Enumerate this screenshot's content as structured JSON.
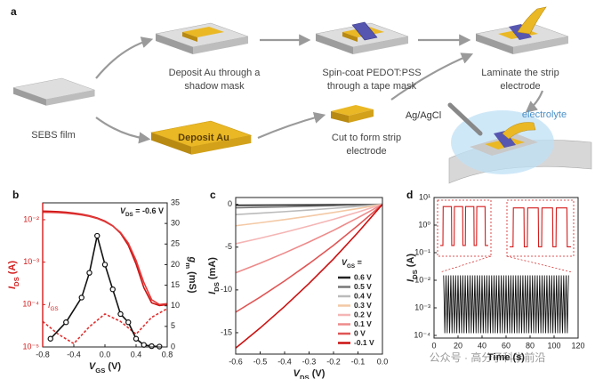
{
  "schematic": {
    "label": "a",
    "sebs": "SEBS film",
    "mask": [
      "Deposit Au through a",
      "shadow mask"
    ],
    "pedot": [
      "Spin-coat PEDOT:PSS",
      "through a tape mask"
    ],
    "laminate": [
      "Laminate the strip",
      "electrode"
    ],
    "deposit": "Deposit Au",
    "cut": [
      "Cut to form strip",
      "electrode"
    ],
    "reference": "Ag/AgCl",
    "electrolyte": "electrolyte"
  },
  "watermark": "公众号 · 高分子科学前沿",
  "chart_data": [
    {
      "type": "line",
      "label": "b",
      "xlabel": [
        "V",
        "GS",
        " (V)"
      ],
      "ylabel": [
        "I",
        "DS",
        " (A)"
      ],
      "y2label": [
        "g",
        "m",
        " (mS)"
      ],
      "annotation": [
        "V",
        "DS",
        " = -0.6 V"
      ],
      "series_label": [
        "I",
        "GS"
      ],
      "xlim": [
        -0.8,
        0.8
      ],
      "xticks": [
        -0.8,
        -0.4,
        {
          "value": 0,
          "label": "0.0"
        },
        0.4,
        0.8
      ],
      "ylim": [
        1e-05,
        0.025
      ],
      "yscale": "log",
      "ycolor": "#d41c1c",
      "yticks": [
        {
          "value": 1e-05,
          "label": "10⁻⁵"
        },
        {
          "value": 0.0001,
          "label": "10⁻⁴"
        },
        {
          "value": 0.001,
          "label": "10⁻³"
        },
        {
          "value": 0.01,
          "label": "10⁻²"
        }
      ],
      "y2lim": [
        0,
        35
      ],
      "y2ticks": [
        0,
        5,
        10,
        15,
        20,
        25,
        30,
        35
      ],
      "series": [
        {
          "color": "#cc1111",
          "x": [
            -0.8,
            -0.7,
            -0.6,
            -0.5,
            -0.4,
            -0.3,
            -0.2,
            -0.1,
            0,
            0.1,
            0.2,
            0.3,
            0.4,
            0.5,
            0.6,
            0.7,
            0.8
          ],
          "values": [
            0.016,
            0.0158,
            0.0155,
            0.015,
            0.0143,
            0.0135,
            0.0124,
            0.011,
            0.0093,
            0.0072,
            0.0048,
            0.0025,
            0.0009,
            0.00025,
            0.00011,
            9.5e-05,
            0.0001
          ]
        },
        {
          "color": "#e23a3a",
          "x": [
            -0.8,
            -0.7,
            -0.6,
            -0.5,
            -0.4,
            -0.3,
            -0.2,
            -0.1,
            0,
            0.1,
            0.2,
            0.3,
            0.4,
            0.5,
            0.6,
            0.7,
            0.8
          ],
          "values": [
            0.015,
            0.0149,
            0.0147,
            0.0143,
            0.0137,
            0.013,
            0.012,
            0.0107,
            0.009,
            0.0071,
            0.005,
            0.0028,
            0.0011,
            0.00033,
            0.00013,
            0.0001,
            0.000105
          ]
        },
        {
          "color": "#e03030",
          "dash": true,
          "x": [
            -0.8,
            -0.6,
            -0.4,
            -0.2,
            0,
            0.2,
            0.4,
            0.6,
            0.8
          ],
          "values": [
            4e-05,
            2e-05,
            1.2e-05,
            3e-05,
            6e-05,
            4e-05,
            2e-05,
            5e-05,
            8e-05
          ]
        },
        {
          "color": "#111111",
          "axis": "y2",
          "marker": "circle",
          "x": [
            -0.7,
            -0.5,
            -0.3,
            -0.2,
            -0.1,
            0,
            0.1,
            0.2,
            0.3,
            0.4,
            0.5,
            0.6,
            0.7
          ],
          "values": [
            2,
            6,
            12,
            18,
            27,
            20,
            14,
            8,
            6,
            2,
            0.5,
            0.2,
            0.1
          ]
        }
      ]
    },
    {
      "type": "line",
      "label": "c",
      "xlabel": [
        "V",
        "DS",
        " (V)"
      ],
      "ylabel": [
        "I",
        "DS",
        " (mA)"
      ],
      "legend_title": [
        "V",
        "GS",
        " ="
      ],
      "xlim": [
        -0.6,
        0
      ],
      "xticks": [
        -0.6,
        -0.5,
        -0.4,
        -0.3,
        -0.2,
        -0.1,
        {
          "value": 0,
          "label": "0.0"
        }
      ],
      "ylim": [
        -17.5,
        0.8
      ],
      "yticks": [
        0,
        -5,
        -10,
        -15
      ],
      "x": [
        -0.6,
        -0.5,
        -0.4,
        -0.3,
        -0.2,
        -0.1,
        0
      ],
      "series": [
        {
          "name": "0.6 V",
          "color": "#222222",
          "values": [
            -0.1,
            -0.09,
            -0.07,
            -0.06,
            -0.04,
            -0.02,
            0
          ]
        },
        {
          "name": "0.5 V",
          "color": "#777777",
          "values": [
            -0.4,
            -0.34,
            -0.28,
            -0.22,
            -0.15,
            -0.08,
            0
          ]
        },
        {
          "name": "0.4 V",
          "color": "#bbbbbb",
          "values": [
            -1.2,
            -1.03,
            -0.85,
            -0.66,
            -0.46,
            -0.23,
            0
          ]
        },
        {
          "name": "0.3 V",
          "color": "#f3c9a5",
          "values": [
            -2.5,
            -2.15,
            -1.78,
            -1.38,
            -0.95,
            -0.49,
            0
          ]
        },
        {
          "name": "0.2 V",
          "color": "#f5b5b5",
          "values": [
            -4.6,
            -3.96,
            -3.27,
            -2.53,
            -1.75,
            -0.9,
            0
          ]
        },
        {
          "name": "0.1 V",
          "color": "#ee8a8a",
          "values": [
            -8,
            -6.88,
            -5.68,
            -4.4,
            -3.04,
            -1.56,
            0
          ]
        },
        {
          "name": "0 V",
          "color": "#e05555",
          "values": [
            -12.6,
            -10.84,
            -8.95,
            -6.93,
            -4.79,
            -2.46,
            0
          ]
        },
        {
          "name": "-0.1 V",
          "color": "#cc1111",
          "values": [
            -16.8,
            -14.45,
            -11.93,
            -9.24,
            -6.38,
            -3.28,
            0
          ]
        }
      ]
    },
    {
      "type": "line",
      "label": "d",
      "xlabel": "Time (s)",
      "ylabel": [
        "I",
        "DS",
        " (A)"
      ],
      "xlim": [
        0,
        120
      ],
      "xticks": [
        0,
        20,
        40,
        60,
        80,
        100,
        120
      ],
      "ylim": [
        8e-05,
        10
      ],
      "yscale": "log",
      "yticks": [
        {
          "value": 0.0001,
          "label": "10⁻⁴"
        },
        {
          "value": 0.001,
          "label": "10⁻³"
        },
        {
          "value": 0.01,
          "label": "10⁻²"
        },
        {
          "value": 0.1,
          "label": "10⁻¹"
        },
        {
          "value": 1,
          "label": "10⁰"
        },
        {
          "value": 10,
          "label": "10¹"
        }
      ],
      "series": [
        {
          "color": "#111111",
          "x": [
            8,
            9,
            10,
            11,
            12,
            13,
            14,
            15,
            16,
            17,
            18,
            19,
            20,
            21,
            22,
            23,
            24,
            25,
            26,
            27,
            28,
            29,
            30,
            31,
            32,
            33,
            34,
            35,
            36,
            37,
            38,
            39,
            40,
            41,
            42,
            43,
            44,
            45,
            46,
            47,
            48,
            49,
            50,
            51,
            52,
            53,
            54,
            55,
            56,
            57,
            58,
            59,
            60,
            61,
            62,
            63,
            64,
            65,
            66,
            67,
            68,
            69,
            70,
            71,
            72,
            73,
            74,
            75,
            76,
            77,
            78,
            79,
            80,
            81,
            82,
            83,
            84,
            85,
            86,
            87,
            88,
            89,
            90,
            91,
            92,
            93,
            94,
            95,
            96,
            97,
            98,
            99,
            100,
            101,
            102,
            103,
            104,
            105,
            106,
            107,
            108,
            109,
            110,
            111,
            112
          ],
          "values": [
            0.015,
            0.00012,
            0.015,
            0.00012,
            0.015,
            0.00012,
            0.015,
            0.00012,
            0.015,
            0.00012,
            0.015,
            0.00012,
            0.015,
            0.00012,
            0.015,
            0.00012,
            0.015,
            0.00012,
            0.015,
            0.00012,
            0.015,
            0.00012,
            0.015,
            0.00012,
            0.015,
            0.00012,
            0.015,
            0.00012,
            0.015,
            0.00012,
            0.015,
            0.00012,
            0.015,
            0.00012,
            0.015,
            0.00012,
            0.015,
            0.00012,
            0.015,
            0.00012,
            0.015,
            0.00012,
            0.015,
            0.00012,
            0.015,
            0.00012,
            0.015,
            0.00012,
            0.015,
            0.00012,
            0.015,
            0.00012,
            0.015,
            0.00012,
            0.015,
            0.00012,
            0.015,
            0.00012,
            0.015,
            0.00012,
            0.015,
            0.00012,
            0.015,
            0.00012,
            0.015,
            0.00012,
            0.015,
            0.00012,
            0.015,
            0.00012,
            0.015,
            0.00012,
            0.015,
            0.00012,
            0.015,
            0.00012,
            0.015,
            0.00012,
            0.015,
            0.00012,
            0.015,
            0.00012,
            0.015,
            0.00012,
            0.015,
            0.00012,
            0.015,
            0.00012,
            0.015,
            0.00012,
            0.015,
            0.00012,
            0.015,
            0.00012,
            0.015,
            0.00012,
            0.015,
            0.00012,
            0.015,
            0.00012,
            0.015,
            0.00012,
            0.015,
            0.00012,
            0.015
          ]
        }
      ],
      "insets": [
        {
          "color": "#d41c1c",
          "xlim": [
            0,
            9
          ],
          "ylim": [
            0.01,
            10
          ],
          "x": [
            0,
            0.5,
            0.55,
            2.1,
            2.15,
            2.6,
            2.65,
            4.2,
            4.25,
            4.7,
            4.75,
            6.3,
            6.35,
            6.8,
            6.85,
            8.4,
            8.45,
            9
          ],
          "values": [
            0.03,
            0.03,
            6,
            6,
            0.03,
            0.03,
            6,
            6,
            0.03,
            0.03,
            6,
            6,
            0.03,
            0.03,
            6,
            6,
            0.03,
            0.03
          ]
        },
        {
          "color": "#d41c1c",
          "xlim": [
            0,
            9
          ],
          "ylim": [
            0.01,
            10
          ],
          "x": [
            0,
            0.5,
            0.55,
            2.1,
            2.15,
            2.6,
            2.65,
            4.2,
            4.25,
            4.7,
            4.75,
            6.3,
            6.35,
            6.8,
            6.85,
            8.4,
            8.45,
            9
          ],
          "values": [
            0.025,
            0.025,
            5,
            5,
            0.025,
            0.025,
            5,
            5,
            0.025,
            0.025,
            5,
            5,
            0.025,
            0.025,
            5,
            5,
            0.025,
            0.025
          ]
        }
      ]
    }
  ]
}
